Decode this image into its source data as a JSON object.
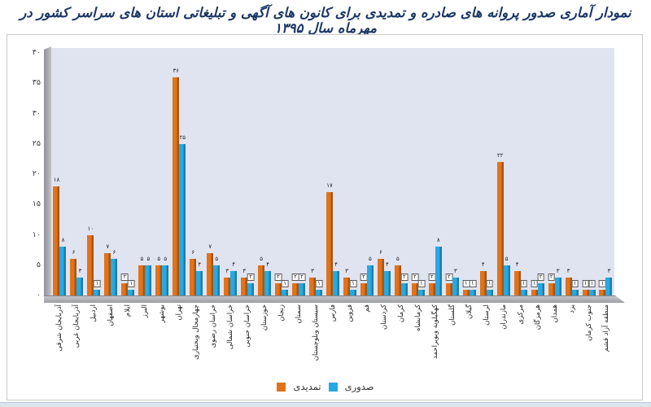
{
  "title": "نمودار آماری صدور پروانه های صادره و تمدیدی برای کانون های آگهی و تبلیغاتی استان های سراسر کشور در مهرماه سال ۱۳۹۵",
  "colors": {
    "orange": "#e1731b",
    "orange_shade": "#a85512",
    "blue": "#27a9e1",
    "blue_shade": "#1c7ea8",
    "plot_background": "#e0e3f0",
    "title_text": "#1b3668"
  },
  "legend": {
    "items": [
      {
        "label": "تمدیدی",
        "color": "#e1731b"
      },
      {
        "label": "صدوری",
        "color": "#27a9e1"
      }
    ]
  },
  "chart_data": {
    "type": "bar",
    "rtl": true,
    "title": "نمودار آماری صدور پروانه های صادره و تمدیدی برای کانون های آگهی و تبلیغاتی استان های سراسر کشور در مهرماه سال ۱۳۹۵",
    "categories": [
      "آذربایجان شرقی",
      "آذربایجان غربی",
      "اردبیل",
      "اصفهان",
      "ایلام",
      "البرز",
      "بوشهر",
      "تهران",
      "چهارمحال وبختیاری",
      "خراسان رضوی",
      "خراسان شمالی",
      "خراسان جنوبی",
      "خوزستان",
      "زنجان",
      "سمنان",
      "سیستان وبلوچستان",
      "فارس",
      "قزوین",
      "قم",
      "کردستان",
      "کرمان",
      "کرمانشاه",
      "کهگیلویه وبویراحمد",
      "گلستان",
      "گیلان",
      "لرستان",
      "مازندران",
      "مرکزی",
      "هرمزگان",
      "همدان",
      "یزد",
      "جنوب کرمان",
      "منطقه آزاد قشم"
    ],
    "series": [
      {
        "name": "تمدیدی",
        "color": "#e1731b",
        "shade": "#a85512",
        "values": [
          18,
          6,
          10,
          7,
          2,
          5,
          5,
          36,
          6,
          7,
          3,
          3,
          5,
          2,
          2,
          3,
          17,
          3,
          2,
          6,
          5,
          2,
          2,
          2,
          1,
          4,
          22,
          4,
          1,
          2,
          3,
          1,
          1
        ]
      },
      {
        "name": "صدوری",
        "color": "#27a9e1",
        "shade": "#1c7ea8",
        "values": [
          8,
          3,
          1,
          6,
          1,
          5,
          5,
          25,
          4,
          5,
          4,
          2,
          4,
          1,
          2,
          1,
          4,
          1,
          5,
          4,
          2,
          1,
          8,
          3,
          1,
          1,
          5,
          1,
          2,
          3,
          1,
          1,
          3
        ]
      }
    ],
    "ylim": [
      0,
      40
    ],
    "ytick_step": 5,
    "yticks_persian": [
      "۰",
      "۵",
      "۱۰",
      "۱۵",
      "۲۰",
      "۲۵",
      "۳۰",
      "۳۵",
      "۴۰"
    ],
    "value_labels": "persian-digits",
    "grid": false,
    "legend_position": "bottom"
  }
}
